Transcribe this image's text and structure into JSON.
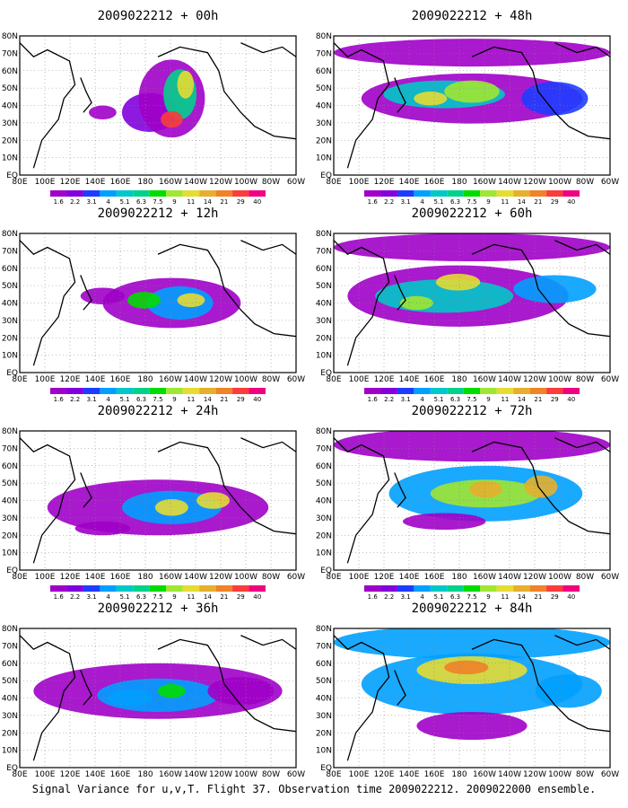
{
  "panels": [
    {
      "title": "2009022212 + 00h"
    },
    {
      "title": "2009022212 + 48h"
    },
    {
      "title": "2009022212 + 12h"
    },
    {
      "title": "2009022212 + 60h"
    },
    {
      "title": "2009022212 + 24h"
    },
    {
      "title": "2009022212 + 72h"
    },
    {
      "title": "2009022212 + 36h"
    },
    {
      "title": "2009022212 + 84h"
    }
  ],
  "lon_labels": [
    "80E",
    "100E",
    "120E",
    "140E",
    "160E",
    "180",
    "160W",
    "140W",
    "120W",
    "100W",
    "80W",
    "60W"
  ],
  "lat_labels": [
    "EQ",
    "10N",
    "20N",
    "30N",
    "40N",
    "50N",
    "60N",
    "70N",
    "80N"
  ],
  "colorbar": {
    "labels": [
      "1.6",
      "2.2",
      "3.1",
      "4",
      "5.1",
      "6.3",
      "7.5",
      "9",
      "11",
      "14",
      "21",
      "29",
      "40"
    ],
    "colors": [
      "#a000c8",
      "#8200dc",
      "#1e3cff",
      "#00a0ff",
      "#00c8c8",
      "#00d28c",
      "#00dc00",
      "#a0e632",
      "#e6dc32",
      "#e6af2d",
      "#f08228",
      "#fa3c3c",
      "#f00082"
    ]
  },
  "caption": "Signal Variance for u,v,T. Flight 37. Observation time 2009022212. 2009022000 ensemble."
}
